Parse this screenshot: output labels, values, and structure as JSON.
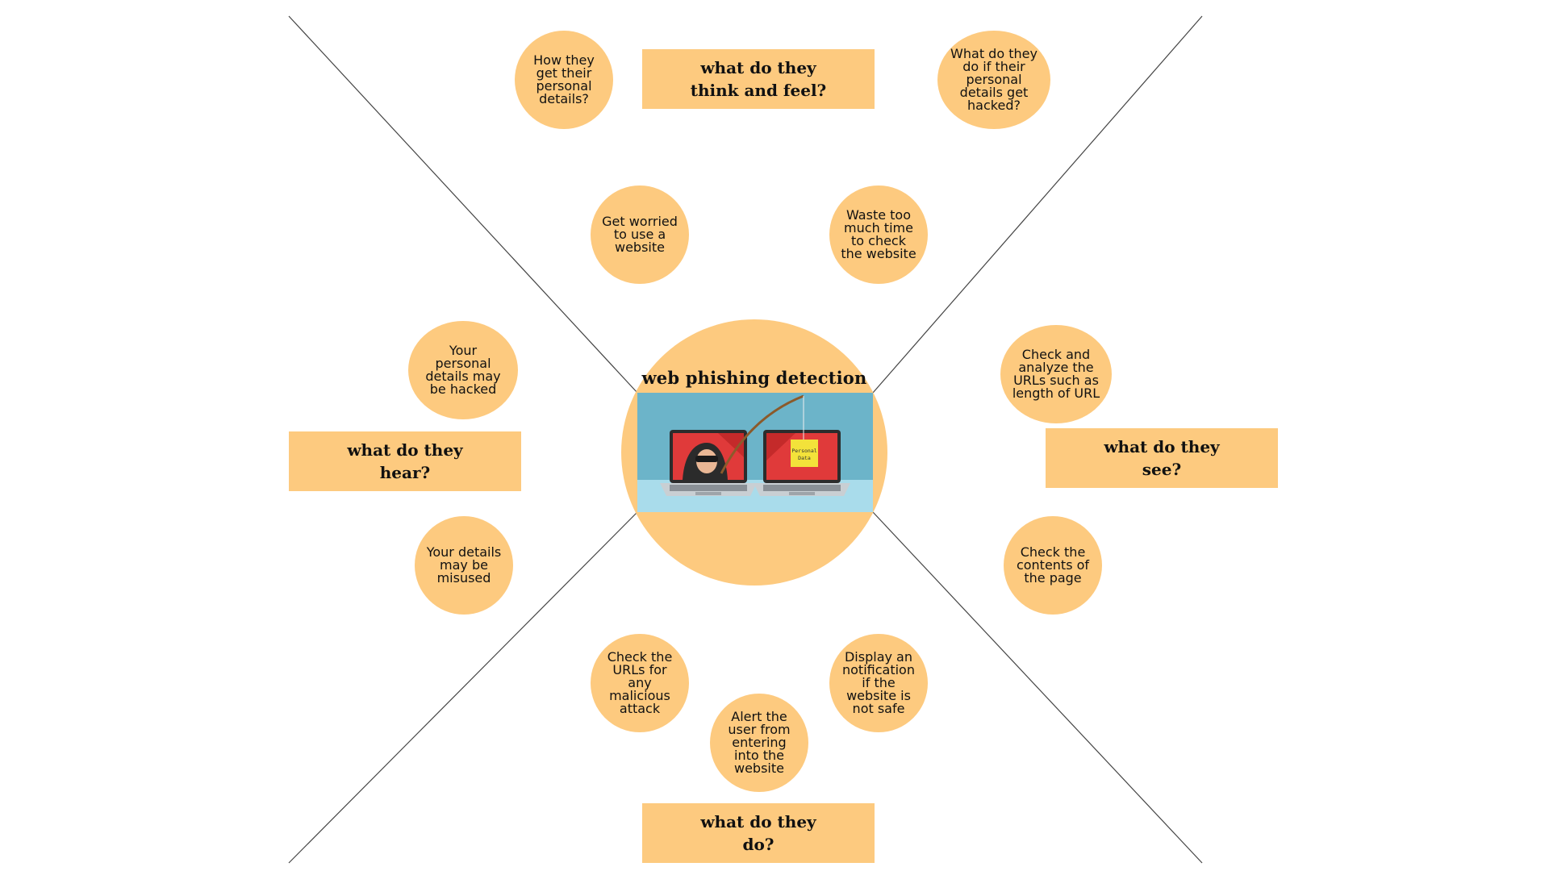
{
  "colors": {
    "accent": "#fdca7f",
    "line": "#444444",
    "illustration_bg": "#6cb4c9",
    "screen_red": "#e03a3a",
    "note_yellow": "#f3e23a"
  },
  "center": {
    "title": "web phishing detection",
    "note_line1": "Personal",
    "note_line2": "Data",
    "icon": "hacker-phishing-illustration"
  },
  "quadrants": {
    "think_feel": {
      "label": "what do they\nthink and feel?"
    },
    "hear": {
      "label": "what do they\nhear?"
    },
    "see": {
      "label": "what do they\nsee?"
    },
    "do": {
      "label": "what do they\ndo?"
    }
  },
  "bubbles": {
    "how_they_get_details": "How they get their personal details?",
    "what_if_hacked": "What do they do if their personal details get hacked?",
    "get_worried": "Get worried to use a website",
    "waste_time": "Waste too much time to check the website",
    "details_may_be_hacked": "Your personal details may be hacked",
    "details_may_be_misused": "Your details may be misused",
    "check_analyze_urls": "Check and analyze the URLs such as length of URL",
    "check_contents": "Check the contents of the page",
    "check_urls_malicious": "Check the URLs for any malicious attack",
    "display_notification": "Display an notification if the website is not safe",
    "alert_user": "Alert the user from entering into the website"
  }
}
